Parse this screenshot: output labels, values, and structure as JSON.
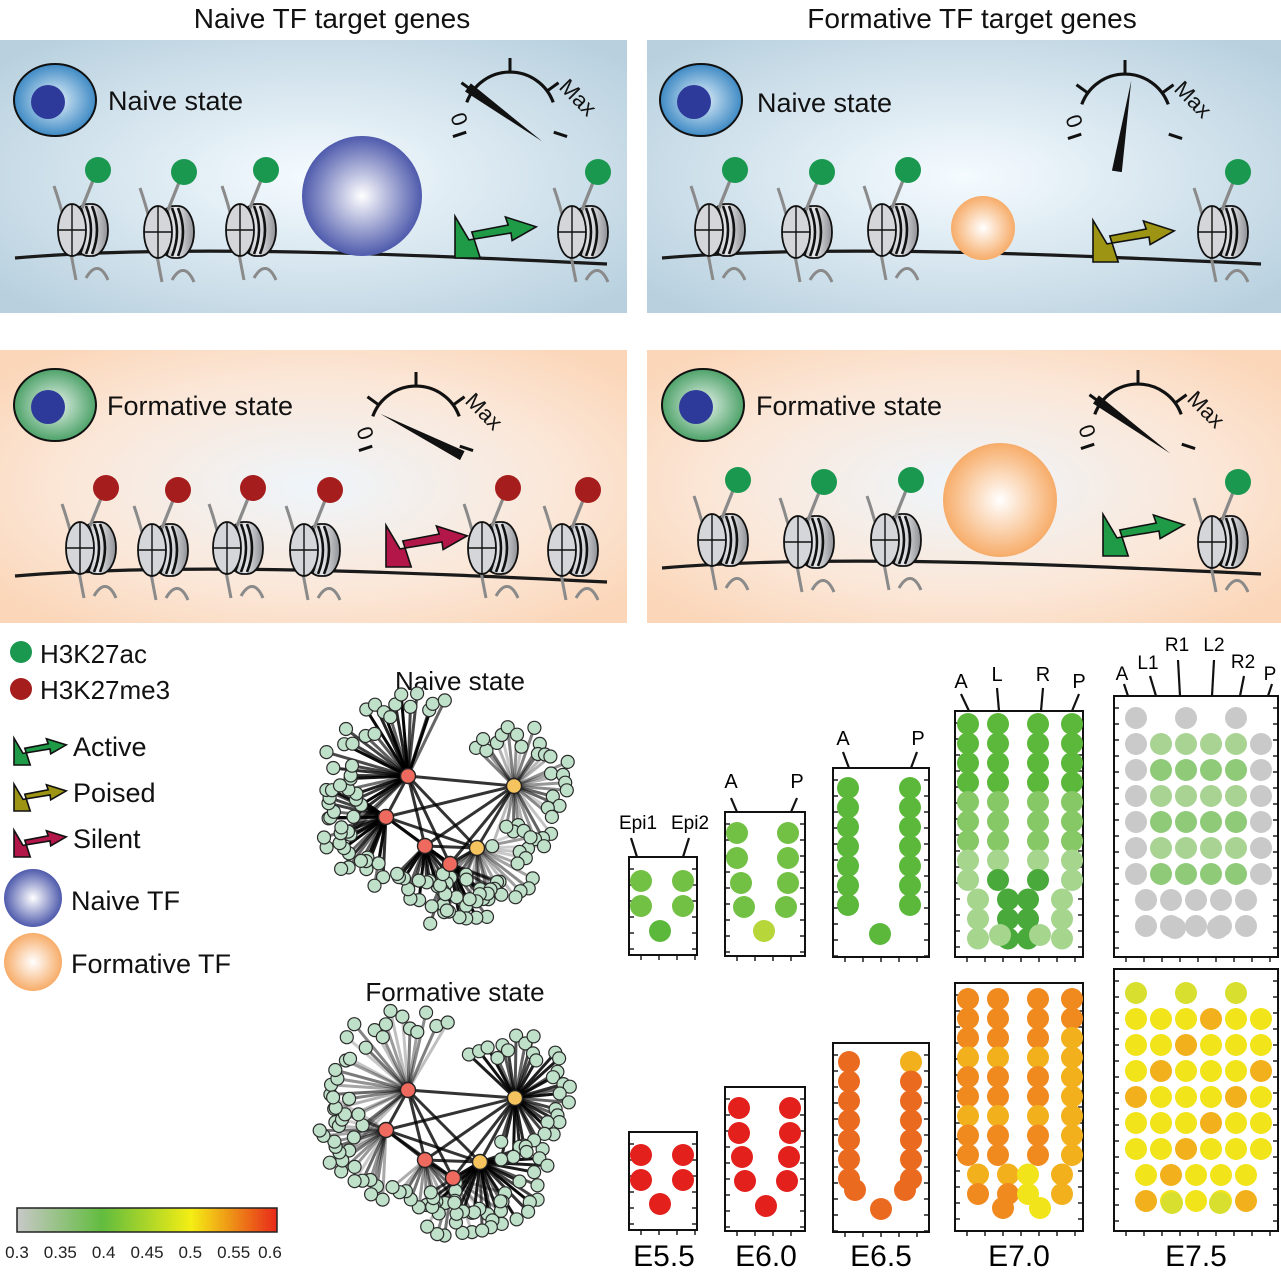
{
  "titles": {
    "naive_targets": "Naive TF target genes",
    "formative_targets": "Formative TF target genes"
  },
  "panels": [
    {
      "id": "naive-targets-naive-state",
      "state_label": "Naive state",
      "background": "blue",
      "cell": "naive",
      "dial": "high",
      "marks": "green",
      "arrow": "active",
      "tf": "naive-large"
    },
    {
      "id": "formative-targets-naive-state",
      "state_label": "Naive state",
      "background": "blue",
      "cell": "naive",
      "dial": "mid",
      "marks": "green",
      "arrow": "poised",
      "tf": "formative-small"
    },
    {
      "id": "naive-targets-formative-state",
      "state_label": "Formative state",
      "background": "peach",
      "cell": "formative",
      "dial": "low",
      "marks": "red",
      "arrow": "silent",
      "tf": "none"
    },
    {
      "id": "formative-targets-formative-state",
      "state_label": "Formative state",
      "background": "peach",
      "cell": "formative",
      "dial": "high",
      "marks": "green",
      "arrow": "active",
      "tf": "formative-large"
    }
  ],
  "dial": {
    "min_label": "0",
    "max_label": "Max"
  },
  "legend": {
    "h3k27ac": "H3K27ac",
    "h3k27me3": "H3K27me3",
    "active": "Active",
    "poised": "Poised",
    "silent": "Silent",
    "naive_tf": "Naive TF",
    "formative_tf": "Formative TF"
  },
  "colors": {
    "h3k27ac": "#1a9850",
    "h3k27me3": "#a51d1d",
    "active": "#1f9b48",
    "poised": "#9c9412",
    "silent": "#b3174a",
    "blue_panel": "#b9d1df",
    "peach_panel": "#fbd9be"
  },
  "networks": {
    "naive_title": "Naive state",
    "formative_title": "Formative state"
  },
  "colorbar": {
    "ticks": [
      "0.3",
      "0.35",
      "0.4",
      "0.45",
      "0.5",
      "0.55",
      "0.6"
    ],
    "stops": [
      "#c8c8c8",
      "#62bc3e",
      "#f4ee14",
      "#e8281a"
    ]
  },
  "stages": [
    "E5.5",
    "E6.0",
    "E6.5",
    "E7.0",
    "E7.5"
  ],
  "embryo_labels": {
    "e55": [
      "Epi1",
      "Epi2"
    ],
    "e60": [
      "A",
      "P"
    ],
    "e65": [
      "A",
      "P"
    ],
    "e70": [
      "A",
      "L",
      "R",
      "P"
    ],
    "e75": [
      "A",
      "L1",
      "R1",
      "L2",
      "R2",
      "P"
    ]
  }
}
